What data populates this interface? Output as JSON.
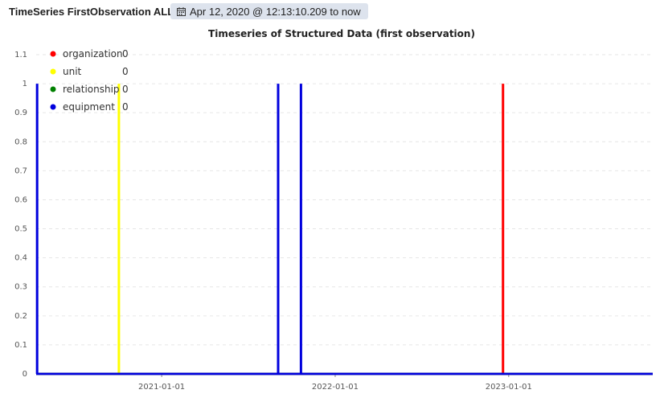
{
  "header": {
    "panel_title": "TimeSeries FirstObservation ALL",
    "time_range": "Apr 12, 2020 @ 12:13:10.209 to now"
  },
  "icons": {
    "time_range_icon": "calendar-icon"
  },
  "chart_data": {
    "type": "line",
    "title": "Timeseries of Structured Data (first observation)",
    "xlabel": "",
    "ylabel": "",
    "x_range": [
      "2020-04-12",
      "2023-10-31"
    ],
    "x_ticks": [
      "2021-01-01",
      "2022-01-01",
      "2023-01-01"
    ],
    "y_ticks": [
      "0",
      "0.1",
      "0.2",
      "0.3",
      "0.4",
      "0.5",
      "0.6",
      "0.7",
      "0.8",
      "0.9",
      "1",
      "1.1"
    ],
    "ylim": [
      0,
      1.1
    ],
    "grid": true,
    "legend_position": "top-left",
    "series": [
      {
        "name": "organization",
        "legend_value": "0",
        "color": "#ff0000",
        "spikes": [
          {
            "x": "2022-12-20",
            "y": 1
          }
        ]
      },
      {
        "name": "unit",
        "legend_value": "0",
        "color": "#ffff00",
        "spikes": [
          {
            "x": "2020-10-03",
            "y": 1
          }
        ]
      },
      {
        "name": "relationship",
        "legend_value": "0",
        "color": "#008000",
        "spikes": []
      },
      {
        "name": "equipment",
        "legend_value": "0",
        "color": "#0000dd",
        "spikes": [
          {
            "x": "2020-04-14",
            "y": 1
          },
          {
            "x": "2021-09-03",
            "y": 1
          },
          {
            "x": "2021-10-21",
            "y": 1
          }
        ]
      }
    ]
  }
}
